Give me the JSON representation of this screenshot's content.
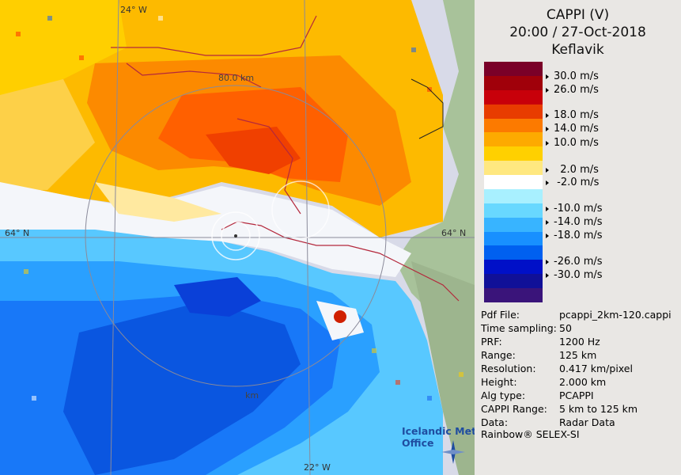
{
  "header": {
    "title": "CAPPI (V)",
    "datetime": "20:00 / 27-Oct-2018",
    "station": "Keflavik"
  },
  "color_scale": {
    "unit": "m/s",
    "swatches": [
      "#7a0028",
      "#a0000a",
      "#c8000a",
      "#e83c00",
      "#fc7a00",
      "#fdaa00",
      "#ffd000",
      "#ffe880",
      "#ffffff",
      "#a8f0ff",
      "#68d8ff",
      "#38b4ff",
      "#1890ff",
      "#0060f0",
      "#0010c8",
      "#101098",
      "#3a147a"
    ],
    "labels": [
      "30.0 m/s",
      "26.0 m/s",
      "18.0 m/s",
      "14.0 m/s",
      "10.0 m/s",
      "  2.0 m/s",
      " -2.0 m/s",
      "-10.0 m/s",
      "-14.0 m/s",
      "-18.0 m/s",
      "-26.0 m/s",
      "-30.0 m/s"
    ]
  },
  "map": {
    "lat_label_left": "64° N",
    "lat_label_right": "64° N",
    "lon_label_top": "24° W",
    "lon_label_bottom": "22° W",
    "range_label_outer": "80.0 km",
    "range_label_bottom": "km"
  },
  "metadata": [
    {
      "key": "Pdf File:",
      "value": "pcappi_2km-120.cappi"
    },
    {
      "key": "Time sampling:",
      "value": "50"
    },
    {
      "key": "PRF:",
      "value": "1200 Hz"
    },
    {
      "key": "Range:",
      "value": "125 km"
    },
    {
      "key": "Resolution:",
      "value": "0.417 km/pixel"
    },
    {
      "key": "Height:",
      "value": "2.000 km"
    },
    {
      "key": "Alg type:",
      "value": "PCAPPI"
    },
    {
      "key": "CAPPI Range:",
      "value": "5 km to 125 km"
    },
    {
      "key": "Data:",
      "value": "Radar Data"
    }
  ],
  "footer": "Rainbow® SELEX-SI",
  "logo": {
    "line1": "Icelandic Met",
    "line2": "Office"
  }
}
